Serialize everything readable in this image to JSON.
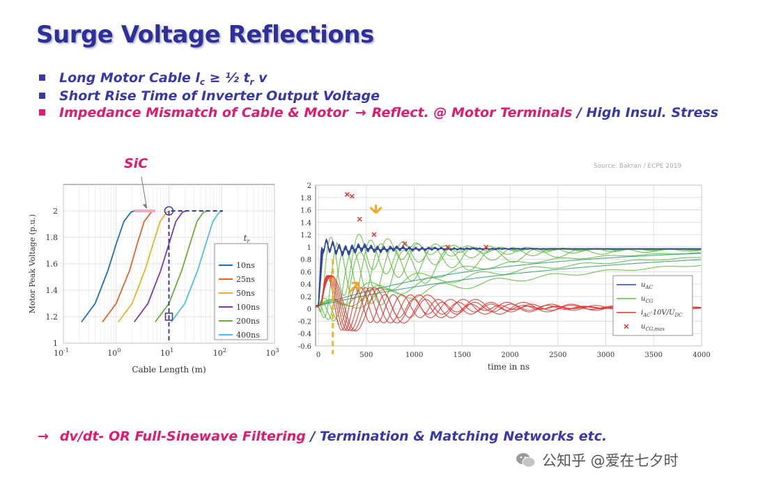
{
  "slide": {
    "title": "Surge Voltage Reflections",
    "bullets": [
      {
        "parts": [
          "Long Motor Cable ",
          "l",
          "c",
          " ≥ ½ ",
          "t",
          "r",
          " v"
        ],
        "color": "#3838a8"
      },
      {
        "text": "Short Rise Time of Inverter Output Voltage",
        "color": "#3838a8"
      },
      {
        "pink": "Impedance Mismatch of Cable & Motor",
        "arrow": "→",
        "pink2": "Reflect. @ Motor Terminals",
        "blue": " / High Insul. Stress",
        "color": "#e01a6e"
      }
    ],
    "sic_label": "SiC",
    "source": "Source: Bakran / ECPE 2019",
    "footer": {
      "arrow": "→",
      "pink": "dv/dt- OR Full-Sinewave Filtering",
      "blue": " / Termination & Matching Networks etc."
    },
    "watermark": "公知乎 @爱在七夕时"
  },
  "chart_data": [
    {
      "type": "line",
      "xlabel": "Cable Length (m)",
      "ylabel": "Motor Peak Voltage (p.u.)",
      "xscale": "log",
      "xlim": [
        0.1,
        1000
      ],
      "ylim": [
        1,
        2.2
      ],
      "xticks": [
        "10",
        "10",
        "10",
        "10",
        "10"
      ],
      "xtick_exps": [
        "-1",
        "0",
        "1",
        "2",
        "3"
      ],
      "yticks": [
        "1",
        "1.2",
        "1.4",
        "1.6",
        "1.8",
        "2"
      ],
      "legend_title": "t",
      "legend_title_sub": "r",
      "legend_position": "right",
      "grid": true,
      "series": [
        {
          "name": "10ns",
          "color": "#1f6fb4",
          "x": [
            0.22,
            0.4,
            0.7,
            1.0,
            1.4,
            1.9,
            2.2
          ],
          "y": [
            1.16,
            1.3,
            1.55,
            1.75,
            1.92,
            1.99,
            2.0
          ]
        },
        {
          "name": "25ns",
          "color": "#d9682a",
          "x": [
            0.55,
            1.0,
            1.8,
            2.5,
            3.4,
            4.6,
            5.5
          ],
          "y": [
            1.16,
            1.3,
            1.55,
            1.75,
            1.92,
            1.99,
            2.0
          ]
        },
        {
          "name": "50ns",
          "color": "#e8b32b",
          "x": [
            1.1,
            2.0,
            3.5,
            5.0,
            6.8,
            9.0,
            10.5
          ],
          "y": [
            1.16,
            1.3,
            1.55,
            1.75,
            1.92,
            1.99,
            2.0
          ]
        },
        {
          "name": "100ns",
          "color": "#7d3aa6",
          "x": [
            2.2,
            4.0,
            7.0,
            10.0,
            13.5,
            18.0,
            21.0
          ],
          "y": [
            1.16,
            1.3,
            1.55,
            1.75,
            1.92,
            1.99,
            2.0
          ]
        },
        {
          "name": "200ns",
          "color": "#6cad3c",
          "x": [
            5.5,
            10.0,
            17.5,
            25.0,
            34.0,
            45.0,
            53.0
          ],
          "y": [
            1.16,
            1.3,
            1.55,
            1.75,
            1.92,
            1.99,
            2.0
          ]
        },
        {
          "name": "400ns",
          "color": "#4fbde6",
          "x": [
            11.0,
            20.0,
            35.0,
            50.0,
            68.0,
            90.0,
            105.0
          ],
          "y": [
            1.16,
            1.3,
            1.55,
            1.75,
            1.92,
            1.99,
            2.0
          ]
        }
      ],
      "highlight_x": 10,
      "highlight_points": [
        {
          "x": 10,
          "y": 2.0
        },
        {
          "x": 10,
          "y": 1.2
        }
      ],
      "sic_segment": {
        "x": [
          2.2,
          5.5
        ],
        "y": 2.0
      }
    },
    {
      "type": "line",
      "xlabel": "time in ns",
      "xlim": [
        -30,
        4000
      ],
      "ylim": [
        -0.6,
        2
      ],
      "xticks": [
        "0",
        "500",
        "1000",
        "1500",
        "2000",
        "2500",
        "3000",
        "3500",
        "4000"
      ],
      "yticks": [
        "-0.6",
        "-0.4",
        "-0.2",
        "0",
        "0.2",
        "0.4",
        "0.6",
        "0.8",
        "1",
        "1.2",
        "1.4",
        "1.6",
        "1.8",
        "2"
      ],
      "legend_position": "lower-right",
      "grid": true,
      "legend": [
        {
          "label": "u",
          "sub": "AC",
          "color": "#2c3f9c",
          "kind": "line"
        },
        {
          "label": "u",
          "sub": "CG",
          "color": "#5cbf3c",
          "kind": "line"
        },
        {
          "label": "i",
          "sub": "AC",
          "tail": "·10V/U",
          "tail_sub": "DC",
          "color": "#e0332d",
          "kind": "line"
        },
        {
          "label": "u",
          "sub": "CG,max",
          "color": "#e0332d",
          "kind": "cross"
        }
      ],
      "series_params": {
        "u_AC": {
          "final": 0.97,
          "decays": [
            25,
            40,
            60,
            90,
            130
          ],
          "freq": 0.045,
          "amp": 0.08
        },
        "u_CG": {
          "final": 0.96,
          "delays": [
            50,
            120,
            180,
            250,
            320,
            400,
            480,
            560
          ],
          "taus": [
            200,
            350,
            500,
            700,
            900,
            1400,
            2000,
            3000
          ]
        },
        "i_AC": {
          "final": 0.02,
          "amp": 0.55,
          "periods": [
            300,
            340,
            380,
            420,
            460,
            500
          ]
        }
      },
      "marker_line_x": 150,
      "crosses": [
        {
          "x": 300,
          "y": 1.85
        },
        {
          "x": 350,
          "y": 1.82
        },
        {
          "x": 430,
          "y": 1.45
        },
        {
          "x": 580,
          "y": 1.2
        },
        {
          "x": 900,
          "y": 1.05
        },
        {
          "x": 1350,
          "y": 1.0
        },
        {
          "x": 1750,
          "y": 1.0
        }
      ]
    }
  ]
}
